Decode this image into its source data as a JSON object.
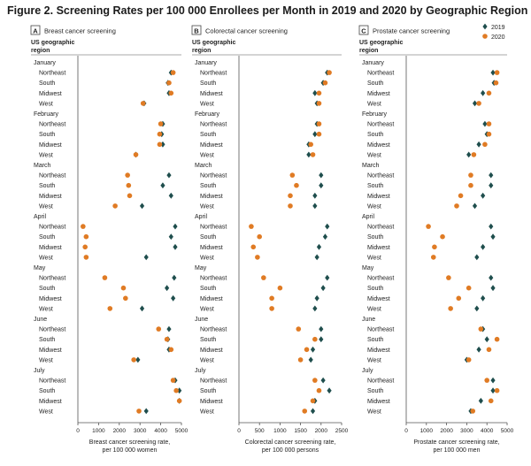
{
  "figure": {
    "title": "Figure 2. Screening Rates per 100 000 Enrollees per Month in 2019 and 2020 by Geographic Region",
    "row_header_line1": "US geographic",
    "row_header_line2": "region",
    "months": [
      "January",
      "February",
      "March",
      "April",
      "May",
      "June",
      "July"
    ],
    "regions": [
      "Northeast",
      "South",
      "Midwest",
      "West"
    ],
    "legend": [
      {
        "label": "2019",
        "color": "#1f4e4d",
        "shape": "diamond"
      },
      {
        "label": "2020",
        "color": "#e07b24",
        "shape": "circle"
      }
    ]
  },
  "chart_data": [
    {
      "type": "scatter",
      "panel_letter": "A",
      "panel_title": "Breast cancer screening",
      "xlabel_line1": "Breast cancer screening rate,",
      "xlabel_line2": "per 100 000 women",
      "xlim": [
        0,
        5000
      ],
      "xticks": [
        0,
        1000,
        2000,
        3000,
        4000,
        5000
      ],
      "series": [
        {
          "name": "2019",
          "values": [
            [
              4500,
              4350,
              4400,
              3200
            ],
            [
              4100,
              4050,
              4100,
              2800
            ],
            [
              4400,
              4100,
              4500,
              3100
            ],
            [
              4700,
              4500,
              4700,
              3300
            ],
            [
              4650,
              4300,
              4600,
              3100
            ],
            [
              4400,
              4350,
              4400,
              2900
            ],
            [
              4700,
              4900,
              4900,
              3300
            ]
          ]
        },
        {
          "name": "2020",
          "values": [
            [
              4600,
              4400,
              4500,
              3150
            ],
            [
              4000,
              3950,
              3950,
              2800
            ],
            [
              2400,
              2450,
              2500,
              1800
            ],
            [
              250,
              400,
              350,
              400
            ],
            [
              1300,
              2200,
              2300,
              1550
            ],
            [
              3900,
              4300,
              4500,
              2700
            ],
            [
              4600,
              4750,
              4900,
              2950
            ]
          ]
        }
      ]
    },
    {
      "type": "scatter",
      "panel_letter": "B",
      "panel_title": "Colorectal cancer screening",
      "xlabel_line1": "Colorectal cancer screening rate,",
      "xlabel_line2": "per 100 000 persons",
      "xlim": [
        0,
        2500
      ],
      "xticks": [
        0,
        500,
        1000,
        1500,
        2000,
        2500
      ],
      "series": [
        {
          "name": "2019",
          "values": [
            [
              2150,
              2050,
              1850,
              1900
            ],
            [
              1900,
              1850,
              1700,
              1700
            ],
            [
              2000,
              2000,
              1850,
              1850
            ],
            [
              2150,
              2100,
              1950,
              1900
            ],
            [
              2150,
              2050,
              1900,
              1850
            ],
            [
              2000,
              2000,
              1800,
              1750
            ],
            [
              2050,
              2200,
              1850,
              1800
            ]
          ]
        },
        {
          "name": "2020",
          "values": [
            [
              2200,
              2100,
              1950,
              1950
            ],
            [
              1950,
              1950,
              1750,
              1800
            ],
            [
              1300,
              1400,
              1250,
              1250
            ],
            [
              300,
              500,
              350,
              450
            ],
            [
              600,
              1000,
              800,
              800
            ],
            [
              1450,
              1850,
              1650,
              1500
            ],
            [
              1850,
              1950,
              1800,
              1600
            ]
          ]
        }
      ]
    },
    {
      "type": "scatter",
      "panel_letter": "C",
      "panel_title": "Prostate cancer screening",
      "xlabel_line1": "Prostate cancer screening rate,",
      "xlabel_line2": "per 100 000 men",
      "xlim": [
        0,
        5000
      ],
      "xticks": [
        0,
        1000,
        2000,
        3000,
        4000,
        5000
      ],
      "series": [
        {
          "name": "2019",
          "values": [
            [
              4300,
              4350,
              3800,
              3400
            ],
            [
              3900,
              4000,
              3600,
              3100
            ],
            [
              4200,
              4200,
              3800,
              3400
            ],
            [
              4200,
              4300,
              3800,
              3500
            ],
            [
              4200,
              4300,
              3800,
              3500
            ],
            [
              3800,
              4000,
              3600,
              3000
            ],
            [
              4300,
              4300,
              3700,
              3200
            ]
          ]
        },
        {
          "name": "2020",
          "values": [
            [
              4500,
              4450,
              4100,
              3600
            ],
            [
              4100,
              4100,
              3900,
              3350
            ],
            [
              3200,
              3200,
              2700,
              2500
            ],
            [
              1100,
              1800,
              1400,
              1350
            ],
            [
              2100,
              3100,
              2600,
              2200
            ],
            [
              3700,
              4500,
              4100,
              3100
            ],
            [
              4000,
              4500,
              4200,
              3300
            ]
          ]
        }
      ]
    }
  ]
}
